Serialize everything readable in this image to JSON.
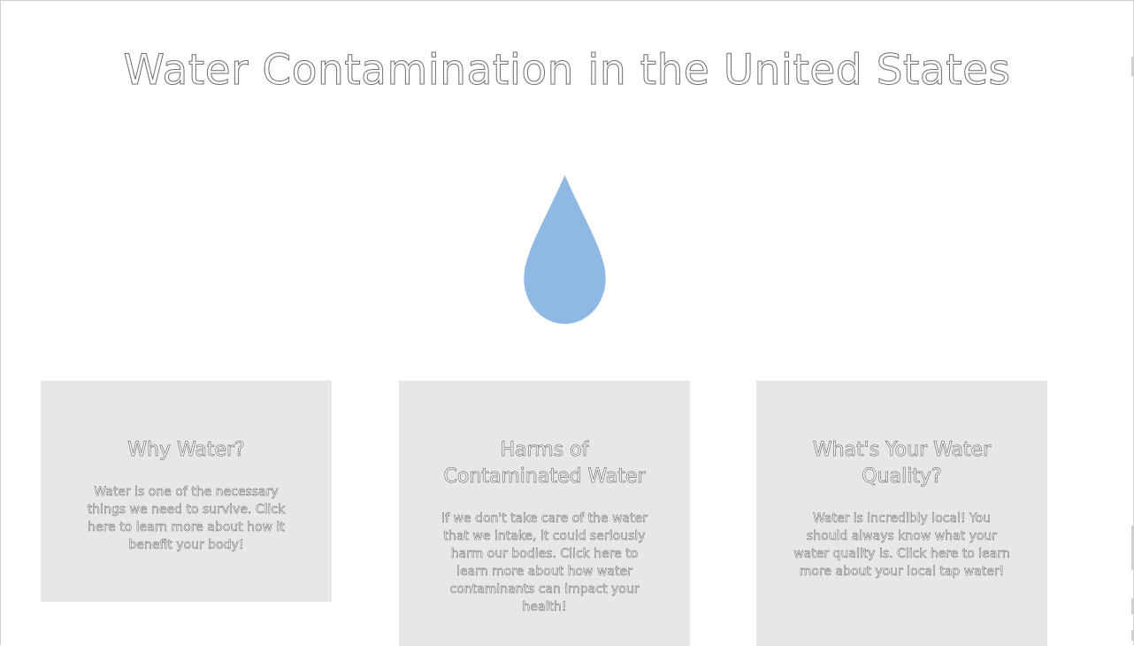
{
  "header": {
    "title": "Water Contamination in the United States"
  },
  "hero": {
    "icon": "water-drop-icon",
    "icon_color": "#8fb9e3"
  },
  "cards": [
    {
      "title": "Why Water?",
      "body": "Water is one of the necessary things we need to survive. Click here to learn more about how it benefit your body!"
    },
    {
      "title": "Harms of Contaminated Water",
      "body": "If we don't take care of the water that we intake, it could seriously harm our bodies. Click here to learn more about how water contaminants can impact your health!"
    },
    {
      "title": "What's Your Water Quality?",
      "body": "Water is incredibly local! You should always know what your water quality is. Click here to learn more about your local tap water!"
    }
  ],
  "colors": {
    "card_background": "#e6e7e8",
    "page_background": "#ffffff"
  }
}
